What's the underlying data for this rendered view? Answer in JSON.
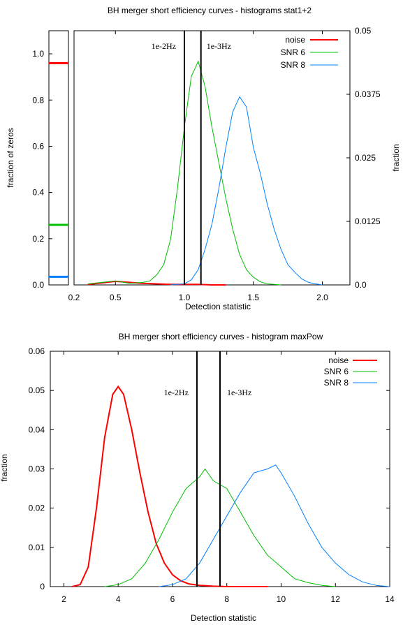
{
  "chart_data": [
    {
      "type": "line",
      "title": "BH merger short efficiency curves - histograms stat1+2",
      "xlabel": "Detection statistic",
      "ylabel_left": "fraction of zeros",
      "ylabel_right": "fraction",
      "xlim": [
        0.2,
        2.2
      ],
      "ylim_left": [
        0,
        1.1
      ],
      "ylim_right": [
        0,
        0.05
      ],
      "xticks": [
        "0.2",
        "0.5",
        "1.0",
        "1.5",
        "2.0"
      ],
      "xtick_values": [
        0.2,
        0.5,
        1.0,
        1.5,
        2.0
      ],
      "yticks_left": [
        "0.0",
        "0.2",
        "0.4",
        "0.6",
        "0.8",
        "1.0"
      ],
      "yticks_left_values": [
        0,
        0.2,
        0.4,
        0.6,
        0.8,
        1.0
      ],
      "yticks_right": [
        "0.0",
        "0.0125",
        "0.025",
        "0.0375",
        "0.05"
      ],
      "yticks_right_values": [
        0,
        0.0125,
        0.025,
        0.0375,
        0.05
      ],
      "zeros_fraction": [
        {
          "name": "noise",
          "value": 0.96,
          "color": "#ff0000"
        },
        {
          "name": "SNR 6",
          "value": 0.26,
          "color": "#00c000"
        },
        {
          "name": "SNR 8",
          "value": 0.035,
          "color": "#0080ff"
        }
      ],
      "vlines": [
        {
          "x": 1.0,
          "label": "1e-2Hz"
        },
        {
          "x": 1.12,
          "label": "1e-3Hz"
        }
      ],
      "series": [
        {
          "name": "noise",
          "color": "#ff0000",
          "x": [
            0.3,
            0.4,
            0.5,
            0.6,
            0.7,
            0.8,
            0.9,
            1.0,
            1.1,
            1.2,
            1.3
          ],
          "y": [
            0.0001,
            0.0004,
            0.0007,
            0.0005,
            0.0003,
            0.0002,
            0.0001,
            0.0001,
            0.0001,
            0,
            0
          ]
        },
        {
          "name": "SNR 6",
          "color": "#00c000",
          "x": [
            0.3,
            0.4,
            0.5,
            0.6,
            0.7,
            0.75,
            0.8,
            0.85,
            0.9,
            0.95,
            1.0,
            1.05,
            1.1,
            1.15,
            1.2,
            1.25,
            1.3,
            1.35,
            1.4,
            1.45,
            1.5,
            1.55,
            1.6,
            1.7
          ],
          "y": [
            0.0002,
            0.0005,
            0.0008,
            0.0003,
            0.0005,
            0.0008,
            0.002,
            0.004,
            0.009,
            0.019,
            0.031,
            0.041,
            0.044,
            0.039,
            0.031,
            0.024,
            0.017,
            0.011,
            0.006,
            0.003,
            0.0015,
            0.0006,
            0.0002,
            0
          ]
        },
        {
          "name": "SNR 8",
          "color": "#0080ff",
          "x": [
            0.9,
            1.0,
            1.05,
            1.1,
            1.15,
            1.2,
            1.25,
            1.3,
            1.35,
            1.4,
            1.45,
            1.5,
            1.55,
            1.6,
            1.65,
            1.7,
            1.75,
            1.8,
            1.85,
            1.9,
            1.95,
            2.0
          ],
          "y": [
            0,
            0.0002,
            0.001,
            0.003,
            0.007,
            0.012,
            0.019,
            0.027,
            0.034,
            0.037,
            0.035,
            0.027,
            0.022,
            0.016,
            0.011,
            0.007,
            0.004,
            0.0025,
            0.0012,
            0.0005,
            0.0002,
            0
          ]
        }
      ],
      "legend": [
        "noise",
        "SNR 6",
        "SNR 8"
      ],
      "legend_position": "top-right"
    },
    {
      "type": "line",
      "title": "BH merger short efficiency curves - histogram maxPow",
      "xlabel": "Detection statistic",
      "ylabel": "fraction",
      "xlim": [
        1.5,
        14
      ],
      "ylim": [
        0,
        0.06
      ],
      "xticks": [
        "2",
        "4",
        "6",
        "8",
        "10",
        "12",
        "14"
      ],
      "xtick_values": [
        2,
        4,
        6,
        8,
        10,
        12,
        14
      ],
      "yticks": [
        "0",
        "0.01",
        "0.02",
        "0.03",
        "0.04",
        "0.05",
        "0.06"
      ],
      "ytick_values": [
        0,
        0.01,
        0.02,
        0.03,
        0.04,
        0.05,
        0.06
      ],
      "vlines": [
        {
          "x": 6.9,
          "label": "1e-2Hz"
        },
        {
          "x": 7.75,
          "label": "1e-3Hz"
        }
      ],
      "series": [
        {
          "name": "noise",
          "color": "#ff0000",
          "x": [
            2.3,
            2.6,
            2.9,
            3.2,
            3.5,
            3.8,
            4.0,
            4.2,
            4.5,
            4.8,
            5.1,
            5.4,
            5.7,
            6.0,
            6.3,
            6.6,
            7.0,
            7.5,
            8.0,
            9.0,
            9.5
          ],
          "y": [
            0,
            0.0005,
            0.005,
            0.02,
            0.038,
            0.049,
            0.051,
            0.049,
            0.04,
            0.029,
            0.019,
            0.011,
            0.006,
            0.003,
            0.0015,
            0.0007,
            0.0003,
            0.0001,
            0,
            0,
            0
          ]
        },
        {
          "name": "SNR 6",
          "color": "#00c000",
          "x": [
            3.5,
            4.0,
            4.5,
            5.0,
            5.5,
            6.0,
            6.5,
            7.0,
            7.2,
            7.5,
            8.0,
            8.5,
            9.0,
            9.5,
            10.0,
            10.5,
            11.0,
            11.5,
            12.0
          ],
          "y": [
            0,
            0.0005,
            0.002,
            0.006,
            0.012,
            0.019,
            0.025,
            0.028,
            0.03,
            0.027,
            0.025,
            0.019,
            0.013,
            0.008,
            0.005,
            0.002,
            0.001,
            0.0003,
            0
          ]
        },
        {
          "name": "SNR 8",
          "color": "#0080ff",
          "x": [
            5.5,
            6.0,
            6.5,
            7.0,
            7.5,
            8.0,
            8.5,
            9.0,
            9.5,
            9.8,
            10.0,
            10.5,
            11.0,
            11.5,
            12.0,
            12.5,
            13.0,
            13.5,
            14.0
          ],
          "y": [
            0,
            0.0005,
            0.002,
            0.006,
            0.012,
            0.018,
            0.024,
            0.029,
            0.03,
            0.031,
            0.029,
            0.023,
            0.016,
            0.01,
            0.006,
            0.003,
            0.0012,
            0.0003,
            0
          ]
        }
      ],
      "legend": [
        "noise",
        "SNR 6",
        "SNR 8"
      ],
      "legend_position": "top-right"
    }
  ]
}
